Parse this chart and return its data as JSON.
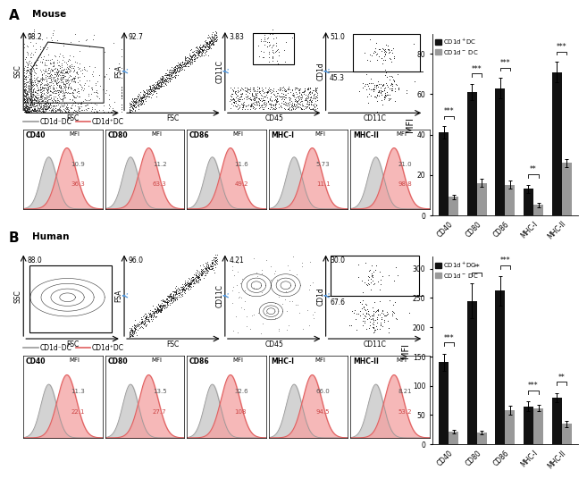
{
  "mouse_title": "Mouse",
  "human_title": "Human",
  "flow_A": {
    "p1": {
      "val": "98.2",
      "xlabel": "FSC",
      "ylabel": "SSC"
    },
    "p2": {
      "val": "92.7",
      "xlabel": "FSC",
      "ylabel": "FSA"
    },
    "p3": {
      "val": "3.83",
      "xlabel": "CD45",
      "ylabel": "CD11C"
    },
    "p4": {
      "val": "51.0",
      "val2": "45.3",
      "xlabel": "CD11C",
      "ylabel": "CD1d"
    }
  },
  "flow_B": {
    "p1": {
      "val": "88.0",
      "xlabel": "FSC",
      "ylabel": "SSC"
    },
    "p2": {
      "val": "96.0",
      "xlabel": "FSC",
      "ylabel": "FSA"
    },
    "p3": {
      "val": "4.21",
      "xlabel": "CD45",
      "ylabel": "CD11C"
    },
    "p4": {
      "val": "30.0",
      "val2": "67.6",
      "xlabel": "CD11C",
      "ylabel": "CD1d"
    }
  },
  "hist_A": {
    "markers": [
      "CD40",
      "CD80",
      "CD86",
      "MHC-I",
      "MHC-II"
    ],
    "cd1d_neg": [
      "10.9",
      "11.2",
      "11.6",
      "5.73",
      "21.0"
    ],
    "cd1d_pos": [
      "36.3",
      "63.3",
      "49.2",
      "11.1",
      "98.8"
    ]
  },
  "hist_B": {
    "markers": [
      "CD40",
      "CD80",
      "CD86",
      "MHC-I",
      "MHC-II"
    ],
    "cd1d_neg": [
      "11.3",
      "13.5",
      "32.6",
      "66.0",
      "8.21"
    ],
    "cd1d_pos": [
      "22.1",
      "27.7",
      "108",
      "94.5",
      "53.2"
    ]
  },
  "bar_A": {
    "categories": [
      "CD40",
      "CD80",
      "CD86",
      "MHC-I",
      "MHC-II"
    ],
    "cd1d_pos_mean": [
      41,
      61,
      63,
      13,
      71
    ],
    "cd1d_pos_err": [
      3,
      4,
      5,
      2,
      5
    ],
    "cd1d_neg_mean": [
      9,
      16,
      15,
      5,
      26
    ],
    "cd1d_neg_err": [
      1,
      2,
      2,
      1,
      2
    ],
    "sig": [
      "***",
      "***",
      "***",
      "**",
      "***"
    ],
    "ylim": [
      0,
      90
    ],
    "yticks": [
      0,
      20,
      40,
      60,
      80
    ],
    "ylabel": "MFI"
  },
  "bar_B": {
    "categories": [
      "CD40",
      "CD80",
      "CD86",
      "MHC-I",
      "MHC-II"
    ],
    "cd1d_pos_mean": [
      140,
      245,
      262,
      65,
      80
    ],
    "cd1d_pos_err": [
      15,
      30,
      25,
      8,
      8
    ],
    "cd1d_neg_mean": [
      22,
      20,
      58,
      62,
      35
    ],
    "cd1d_neg_err": [
      3,
      3,
      8,
      6,
      5
    ],
    "sig": [
      "***",
      "**",
      "***",
      "***",
      "**"
    ],
    "ylim": [
      0,
      320
    ],
    "yticks": [
      0,
      50,
      100,
      150,
      200,
      250,
      300
    ],
    "ylabel": "MFI"
  },
  "hist_color_pos": "#f4a0a0",
  "hist_color_neg": "#cccccc",
  "hist_line_pos": "#e06060",
  "hist_line_neg": "#999999",
  "arrow_color": "#5599dd",
  "bar_pos_color": "#111111",
  "bar_neg_color": "#999999"
}
